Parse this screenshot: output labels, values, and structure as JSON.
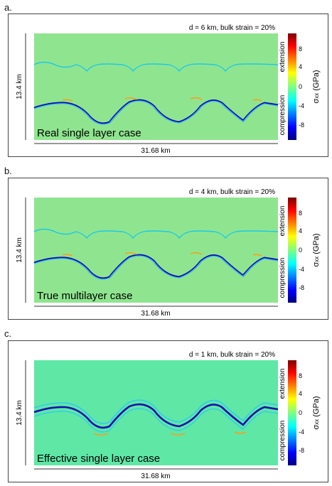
{
  "panels": [
    {
      "letter": "a.",
      "params": "d = 6 km, bulk strain = 20%",
      "case_label": "Real single layer case",
      "height_label": "13.4 km",
      "width_label": "31.68 km",
      "bg_color": "#8fe58f"
    },
    {
      "letter": "b.",
      "params": "d = 4 km, bulk strain = 20%",
      "case_label": "True multilayer case",
      "height_label": "13.4 km",
      "width_label": "31.68 km",
      "bg_color": "#8fe58f"
    },
    {
      "letter": "c.",
      "params": "d = 1 km, bulk strain = 20%",
      "case_label": "Effective single layer case",
      "height_label": "13.4 km",
      "width_label": "31.68 km",
      "bg_color": "#5fe7a6"
    }
  ],
  "colorbar": {
    "ticks": [
      "8",
      "4",
      "0",
      "-4",
      "-8"
    ],
    "label_sigma": "σ",
    "label_sub": "xx",
    "label_unit": " (GPa)",
    "extension": "extension",
    "compression": "compression"
  }
}
